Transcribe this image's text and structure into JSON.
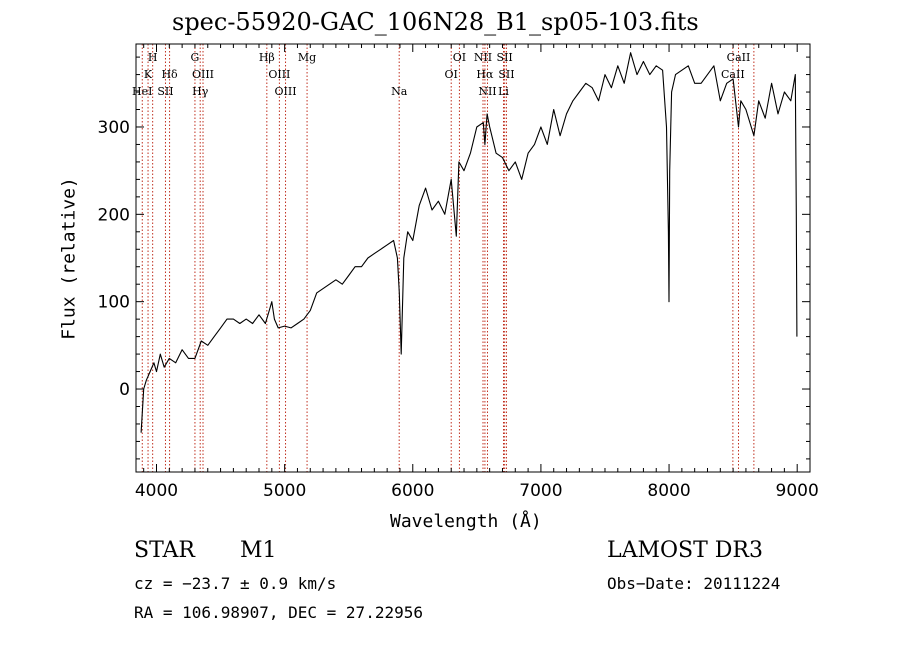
{
  "chart_data": {
    "type": "line",
    "title": "spec-55920-GAC_106N28_B1_sp05-103.fits",
    "xlabel": "Wavelength (Å)",
    "ylabel": "Flux (relative)",
    "xlim": [
      3840,
      9100
    ],
    "ylim": [
      -95,
      395
    ],
    "x_ticks": [
      4000,
      5000,
      6000,
      7000,
      8000,
      9000
    ],
    "y_ticks": [
      0,
      100,
      200,
      300
    ],
    "grid": false,
    "series": [
      {
        "name": "flux",
        "x": [
          3880,
          3900,
          3920,
          3950,
          3980,
          4000,
          4030,
          4060,
          4100,
          4150,
          4200,
          4250,
          4300,
          4350,
          4400,
          4450,
          4500,
          4550,
          4600,
          4650,
          4700,
          4750,
          4800,
          4850,
          4880,
          4900,
          4920,
          4950,
          5000,
          5050,
          5100,
          5150,
          5200,
          5250,
          5300,
          5350,
          5400,
          5450,
          5500,
          5550,
          5600,
          5650,
          5700,
          5750,
          5800,
          5850,
          5880,
          5895,
          5910,
          5930,
          5960,
          6000,
          6050,
          6100,
          6150,
          6200,
          6250,
          6300,
          6340,
          6360,
          6400,
          6450,
          6500,
          6550,
          6563,
          6580,
          6600,
          6650,
          6700,
          6750,
          6800,
          6850,
          6900,
          6950,
          7000,
          7050,
          7100,
          7150,
          7200,
          7250,
          7300,
          7350,
          7400,
          7450,
          7500,
          7550,
          7600,
          7650,
          7700,
          7750,
          7800,
          7850,
          7900,
          7950,
          7980,
          7995,
          8000,
          8005,
          8020,
          8050,
          8100,
          8150,
          8200,
          8250,
          8300,
          8350,
          8400,
          8450,
          8500,
          8542,
          8560,
          8600,
          8662,
          8700,
          8750,
          8800,
          8850,
          8900,
          8950,
          8985,
          8993,
          8998
        ],
        "y": [
          -50,
          0,
          10,
          20,
          30,
          20,
          40,
          25,
          35,
          30,
          45,
          35,
          35,
          55,
          50,
          60,
          70,
          80,
          80,
          75,
          80,
          75,
          85,
          75,
          90,
          100,
          80,
          70,
          72,
          70,
          75,
          80,
          90,
          110,
          115,
          120,
          125,
          120,
          130,
          140,
          140,
          150,
          155,
          160,
          165,
          170,
          150,
          110,
          40,
          150,
          180,
          170,
          210,
          230,
          205,
          215,
          200,
          240,
          175,
          260,
          250,
          270,
          300,
          305,
          280,
          315,
          300,
          270,
          265,
          250,
          260,
          240,
          270,
          280,
          300,
          280,
          320,
          290,
          315,
          330,
          340,
          350,
          345,
          330,
          360,
          345,
          370,
          350,
          385,
          360,
          375,
          360,
          370,
          365,
          300,
          180,
          100,
          250,
          340,
          360,
          365,
          370,
          350,
          350,
          360,
          370,
          330,
          350,
          355,
          300,
          330,
          320,
          290,
          330,
          310,
          350,
          315,
          340,
          330,
          360,
          200,
          60
        ]
      }
    ],
    "line_ids": [
      {
        "label": "H",
        "wavelength": 3889
      },
      {
        "label": "K",
        "wavelength": 3934
      },
      {
        "label": "HeI",
        "wavelength": 3889
      },
      {
        "label": "H",
        "wavelength": 3970
      },
      {
        "label": "SII",
        "wavelength": 4070
      },
      {
        "label": "Hδ",
        "wavelength": 4102
      },
      {
        "label": "G",
        "wavelength": 4300
      },
      {
        "label": "OIII",
        "wavelength": 4363
      },
      {
        "label": "Hγ",
        "wavelength": 4341
      },
      {
        "label": "Hβ",
        "wavelength": 4861
      },
      {
        "label": "OIII",
        "wavelength": 4959
      },
      {
        "label": "OIII",
        "wavelength": 5007
      },
      {
        "label": "Mg",
        "wavelength": 5175
      },
      {
        "label": "Na",
        "wavelength": 5894
      },
      {
        "label": "OI",
        "wavelength": 6300
      },
      {
        "label": "OI",
        "wavelength": 6364
      },
      {
        "label": "NII",
        "wavelength": 6548
      },
      {
        "label": "Hα",
        "wavelength": 6563
      },
      {
        "label": "NII",
        "wavelength": 6583
      },
      {
        "label": "SII",
        "wavelength": 6717
      },
      {
        "label": "SII",
        "wavelength": 6731
      },
      {
        "label": "Li",
        "wavelength": 6708
      },
      {
        "label": "CaII",
        "wavelength": 8498
      },
      {
        "label": "CaII",
        "wavelength": 8542
      },
      {
        "label": "CaII",
        "wavelength": 8662
      }
    ],
    "line_id_labels": [
      {
        "text": "H",
        "wl": 3970,
        "row": 0
      },
      {
        "text": "K",
        "wl": 3934,
        "row": 1
      },
      {
        "text": "Hδ",
        "wl": 4102,
        "row": 1
      },
      {
        "text": "HeI",
        "wl": 3889,
        "row": 2
      },
      {
        "text": "SII",
        "wl": 4070,
        "row": 2
      },
      {
        "text": "G",
        "wl": 4300,
        "row": 0
      },
      {
        "text": "OIII",
        "wl": 4363,
        "row": 1
      },
      {
        "text": "Hγ",
        "wl": 4341,
        "row": 2
      },
      {
        "text": "Hβ",
        "wl": 4861,
        "row": 0
      },
      {
        "text": "Mg",
        "wl": 5175,
        "row": 0
      },
      {
        "text": "OIII",
        "wl": 4959,
        "row": 1
      },
      {
        "text": "OIII",
        "wl": 5007,
        "row": 2
      },
      {
        "text": "Na",
        "wl": 5894,
        "row": 2
      },
      {
        "text": "OI",
        "wl": 6364,
        "row": 0
      },
      {
        "text": "OI",
        "wl": 6300,
        "row": 1
      },
      {
        "text": "NII",
        "wl": 6548,
        "row": 0
      },
      {
        "text": "SII",
        "wl": 6717,
        "row": 0
      },
      {
        "text": "Hα",
        "wl": 6563,
        "row": 1
      },
      {
        "text": "SII",
        "wl": 6731,
        "row": 1
      },
      {
        "text": "NII",
        "wl": 6583,
        "row": 2
      },
      {
        "text": "Li",
        "wl": 6708,
        "row": 2
      },
      {
        "text": "CaII",
        "wl": 8542,
        "row": 0
      },
      {
        "text": "CaII",
        "wl": 8498,
        "row": 1
      }
    ]
  },
  "info": {
    "object_class": "STAR",
    "subclass": "M1",
    "survey": "LAMOST DR3",
    "redshift_text": "cz = −23.7 ± 0.9 km/s",
    "obs_date_text": "Obs−Date: 20111224",
    "coords_text": "RA = 106.98907, DEC =  27.22956"
  },
  "colors": {
    "line_marker": "#c03020",
    "spectrum": "#000000",
    "axis": "#000000"
  }
}
